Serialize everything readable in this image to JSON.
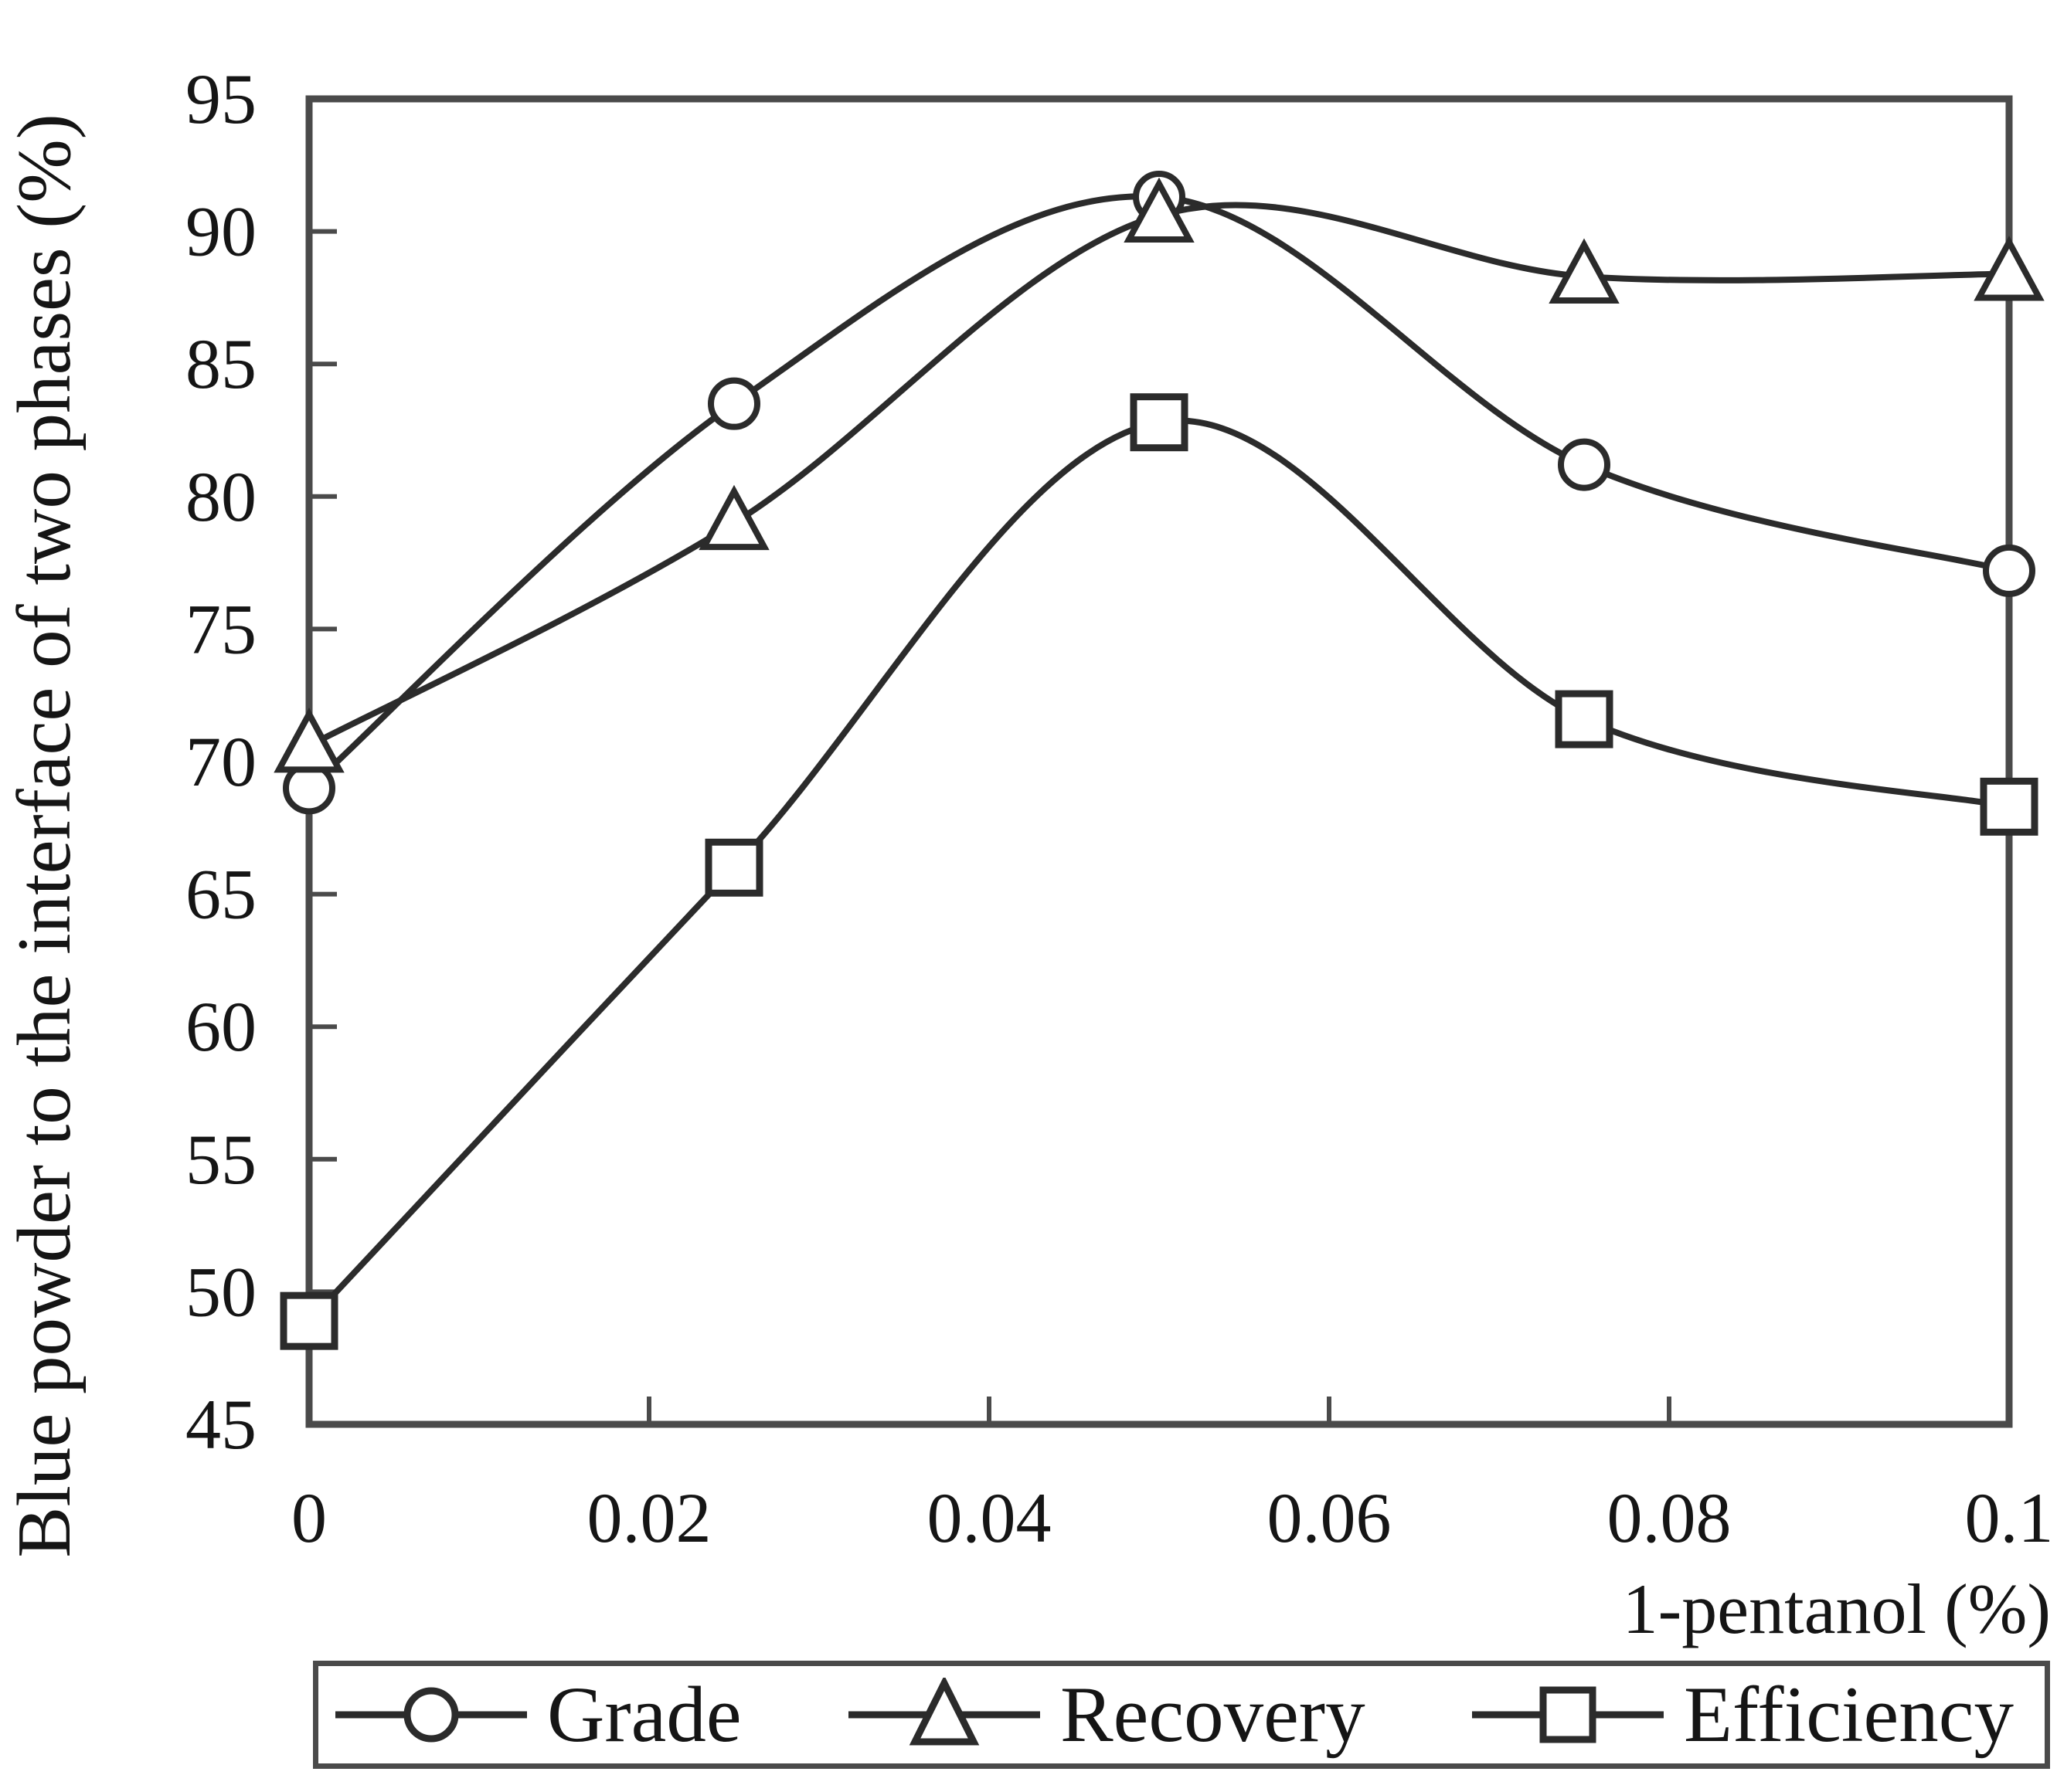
{
  "figure": {
    "background": "#ffffff",
    "axis_color": "#4a4a4a",
    "text_color": "#151515"
  },
  "legend": {
    "position": "bottom",
    "items": [
      {
        "label": "Grade",
        "marker": "circle"
      },
      {
        "label": "Recovery",
        "marker": "triangle"
      },
      {
        "label": "Efficiency",
        "marker": "square"
      }
    ]
  },
  "chart_data": {
    "type": "line",
    "title": "",
    "xlabel": "1-pentanol (%)",
    "ylabel": "Blue powder to the interface of two phases (%)",
    "xlim": [
      0,
      0.1
    ],
    "ylim": [
      45,
      95
    ],
    "grid": false,
    "legend_position": "bottom",
    "line_color": "#2b2b2b",
    "marker_fill": "#ffffff",
    "x": [
      0,
      0.025,
      0.05,
      0.075,
      0.1
    ],
    "x_ticks": [
      0,
      0.02,
      0.04,
      0.06,
      0.08,
      0.1
    ],
    "x_tick_labels": [
      "0",
      "0.02",
      "0.04",
      "0.06",
      "0.08",
      "0.1"
    ],
    "y_ticks": [
      45,
      50,
      55,
      60,
      65,
      70,
      75,
      80,
      85,
      90,
      95
    ],
    "y_tick_labels": [
      "45",
      "50",
      "55",
      "60",
      "65",
      "70",
      "75",
      "80",
      "85",
      "90",
      "95"
    ],
    "series": [
      {
        "name": "Grade",
        "marker": "circle",
        "values": [
          69.0,
          83.5,
          91.3,
          81.2,
          77.2
        ]
      },
      {
        "name": "Recovery",
        "marker": "triangle",
        "values": [
          70.6,
          79.0,
          90.6,
          88.3,
          88.4
        ]
      },
      {
        "name": "Efficiency",
        "marker": "square",
        "values": [
          48.9,
          66.0,
          82.8,
          71.6,
          68.3
        ]
      }
    ]
  }
}
